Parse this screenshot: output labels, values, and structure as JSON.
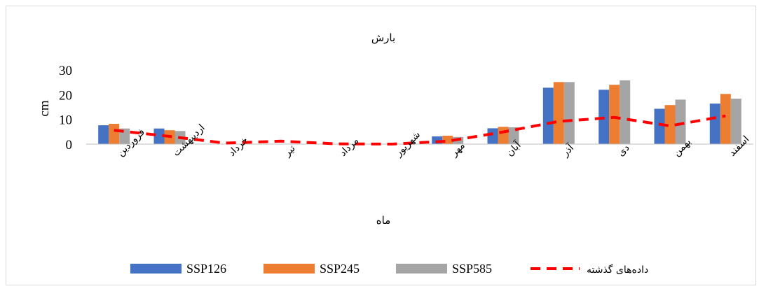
{
  "chart_data": {
    "type": "bar",
    "title": "بارش",
    "xlabel": "ماه",
    "ylabel": "cm",
    "ylim": [
      0,
      30
    ],
    "yticks": [
      0,
      10,
      20,
      30
    ],
    "grid": false,
    "legend_position": "bottom",
    "categories": [
      "فروردین",
      "اردیبهشت",
      "خرداد",
      "تیر",
      "مرداد",
      "شهریور",
      "مهر",
      "آبان",
      "آذر",
      "دی",
      "بهمن",
      "اسفند"
    ],
    "series": [
      {
        "name": "SSP126",
        "type": "bar",
        "color": "#4472C4",
        "values": [
          7.6,
          6.3,
          0,
          0,
          0,
          0,
          3.1,
          6.4,
          22.8,
          22.0,
          14.3,
          16.4
        ]
      },
      {
        "name": "SSP245",
        "type": "bar",
        "color": "#ED7D31",
        "values": [
          8.2,
          5.6,
          0,
          0,
          0,
          0,
          3.4,
          7.0,
          25.1,
          24.0,
          15.8,
          20.3
        ]
      },
      {
        "name": "SSP585",
        "type": "bar",
        "color": "#A5A5A5",
        "values": [
          6.3,
          5.3,
          0,
          0,
          0,
          0,
          2.9,
          6.8,
          25.1,
          25.8,
          18.0,
          18.4
        ]
      },
      {
        "name": "داده‌های گذشته",
        "type": "line",
        "style": "dashed",
        "color": "#FF0000",
        "values": [
          5.6,
          3.1,
          0.4,
          1.2,
          0.1,
          0.0,
          1.2,
          4.9,
          9.2,
          10.8,
          7.4,
          11.4
        ]
      }
    ]
  }
}
